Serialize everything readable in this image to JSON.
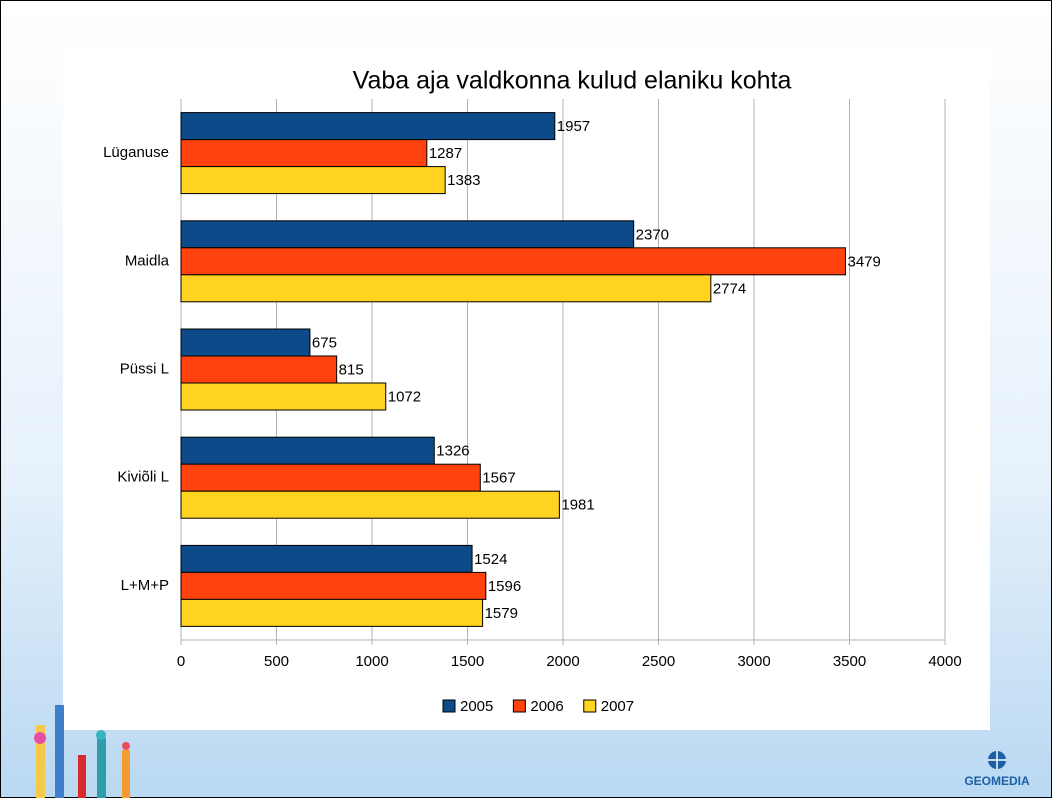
{
  "chart_data": {
    "type": "hbar",
    "title": "Vaba aja valdkonna kulud elaniku kohta",
    "categories": [
      "Lüganuse",
      "Maidla",
      "Püssi L",
      "Kiviõli L",
      "L+M+P"
    ],
    "series": [
      {
        "name": "2005",
        "color": "#0d4a8a",
        "values": [
          1957,
          2370,
          675,
          1326,
          1524
        ]
      },
      {
        "name": "2006",
        "color": "#ff420e",
        "values": [
          1287,
          3479,
          815,
          1567,
          1596
        ]
      },
      {
        "name": "2007",
        "color": "#ffd320",
        "values": [
          1383,
          2774,
          1072,
          1981,
          1579
        ]
      }
    ],
    "xlim": [
      0,
      4000
    ],
    "xticks": [
      0,
      500,
      1000,
      1500,
      2000,
      2500,
      3000,
      3500,
      4000
    ],
    "grid": true,
    "legend": "bottom"
  },
  "footer": {
    "logo": "GEOMEDIA"
  }
}
